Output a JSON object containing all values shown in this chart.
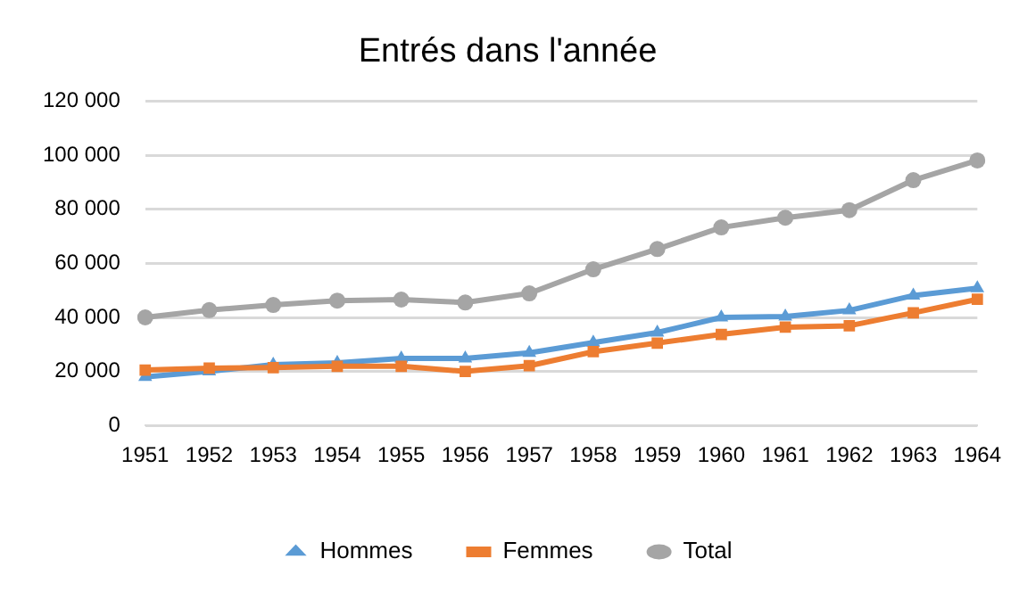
{
  "chart_data": {
    "type": "line",
    "title": "Entrés dans l'année",
    "categories": [
      "1951",
      "1952",
      "1953",
      "1954",
      "1955",
      "1956",
      "1957",
      "1958",
      "1959",
      "1960",
      "1961",
      "1962",
      "1963",
      "1964"
    ],
    "series": [
      {
        "name": "Hommes",
        "color": "#5b9bd5",
        "marker": "triangle",
        "values": [
          18000,
          20000,
          22500,
          23200,
          24800,
          24800,
          26900,
          30700,
          34400,
          40000,
          40300,
          42600,
          48100,
          50800
        ]
      },
      {
        "name": "Femmes",
        "color": "#ed7d31",
        "marker": "square",
        "values": [
          20500,
          21200,
          21400,
          21900,
          21900,
          20000,
          22100,
          27300,
          30500,
          33700,
          36400,
          36900,
          41700,
          46700
        ]
      },
      {
        "name": "Total",
        "color": "#a5a5a5",
        "marker": "circle",
        "values": [
          40000,
          42700,
          44600,
          46200,
          46600,
          45500,
          48900,
          57800,
          65300,
          73300,
          76900,
          79700,
          90800,
          98100
        ]
      }
    ],
    "ylim": [
      0,
      120000
    ],
    "yticks": [
      0,
      {
        "value": 20000,
        "label": "20 000"
      },
      {
        "value": 40000,
        "label": "40 000"
      },
      {
        "value": 60000,
        "label": "60 000"
      },
      {
        "value": 80000,
        "label": "80 000"
      },
      {
        "value": 100000,
        "label": "100 000"
      },
      {
        "value": 120000,
        "label": "120 000"
      }
    ],
    "grid": "y",
    "legend": "bottom",
    "line_style": "solid"
  }
}
